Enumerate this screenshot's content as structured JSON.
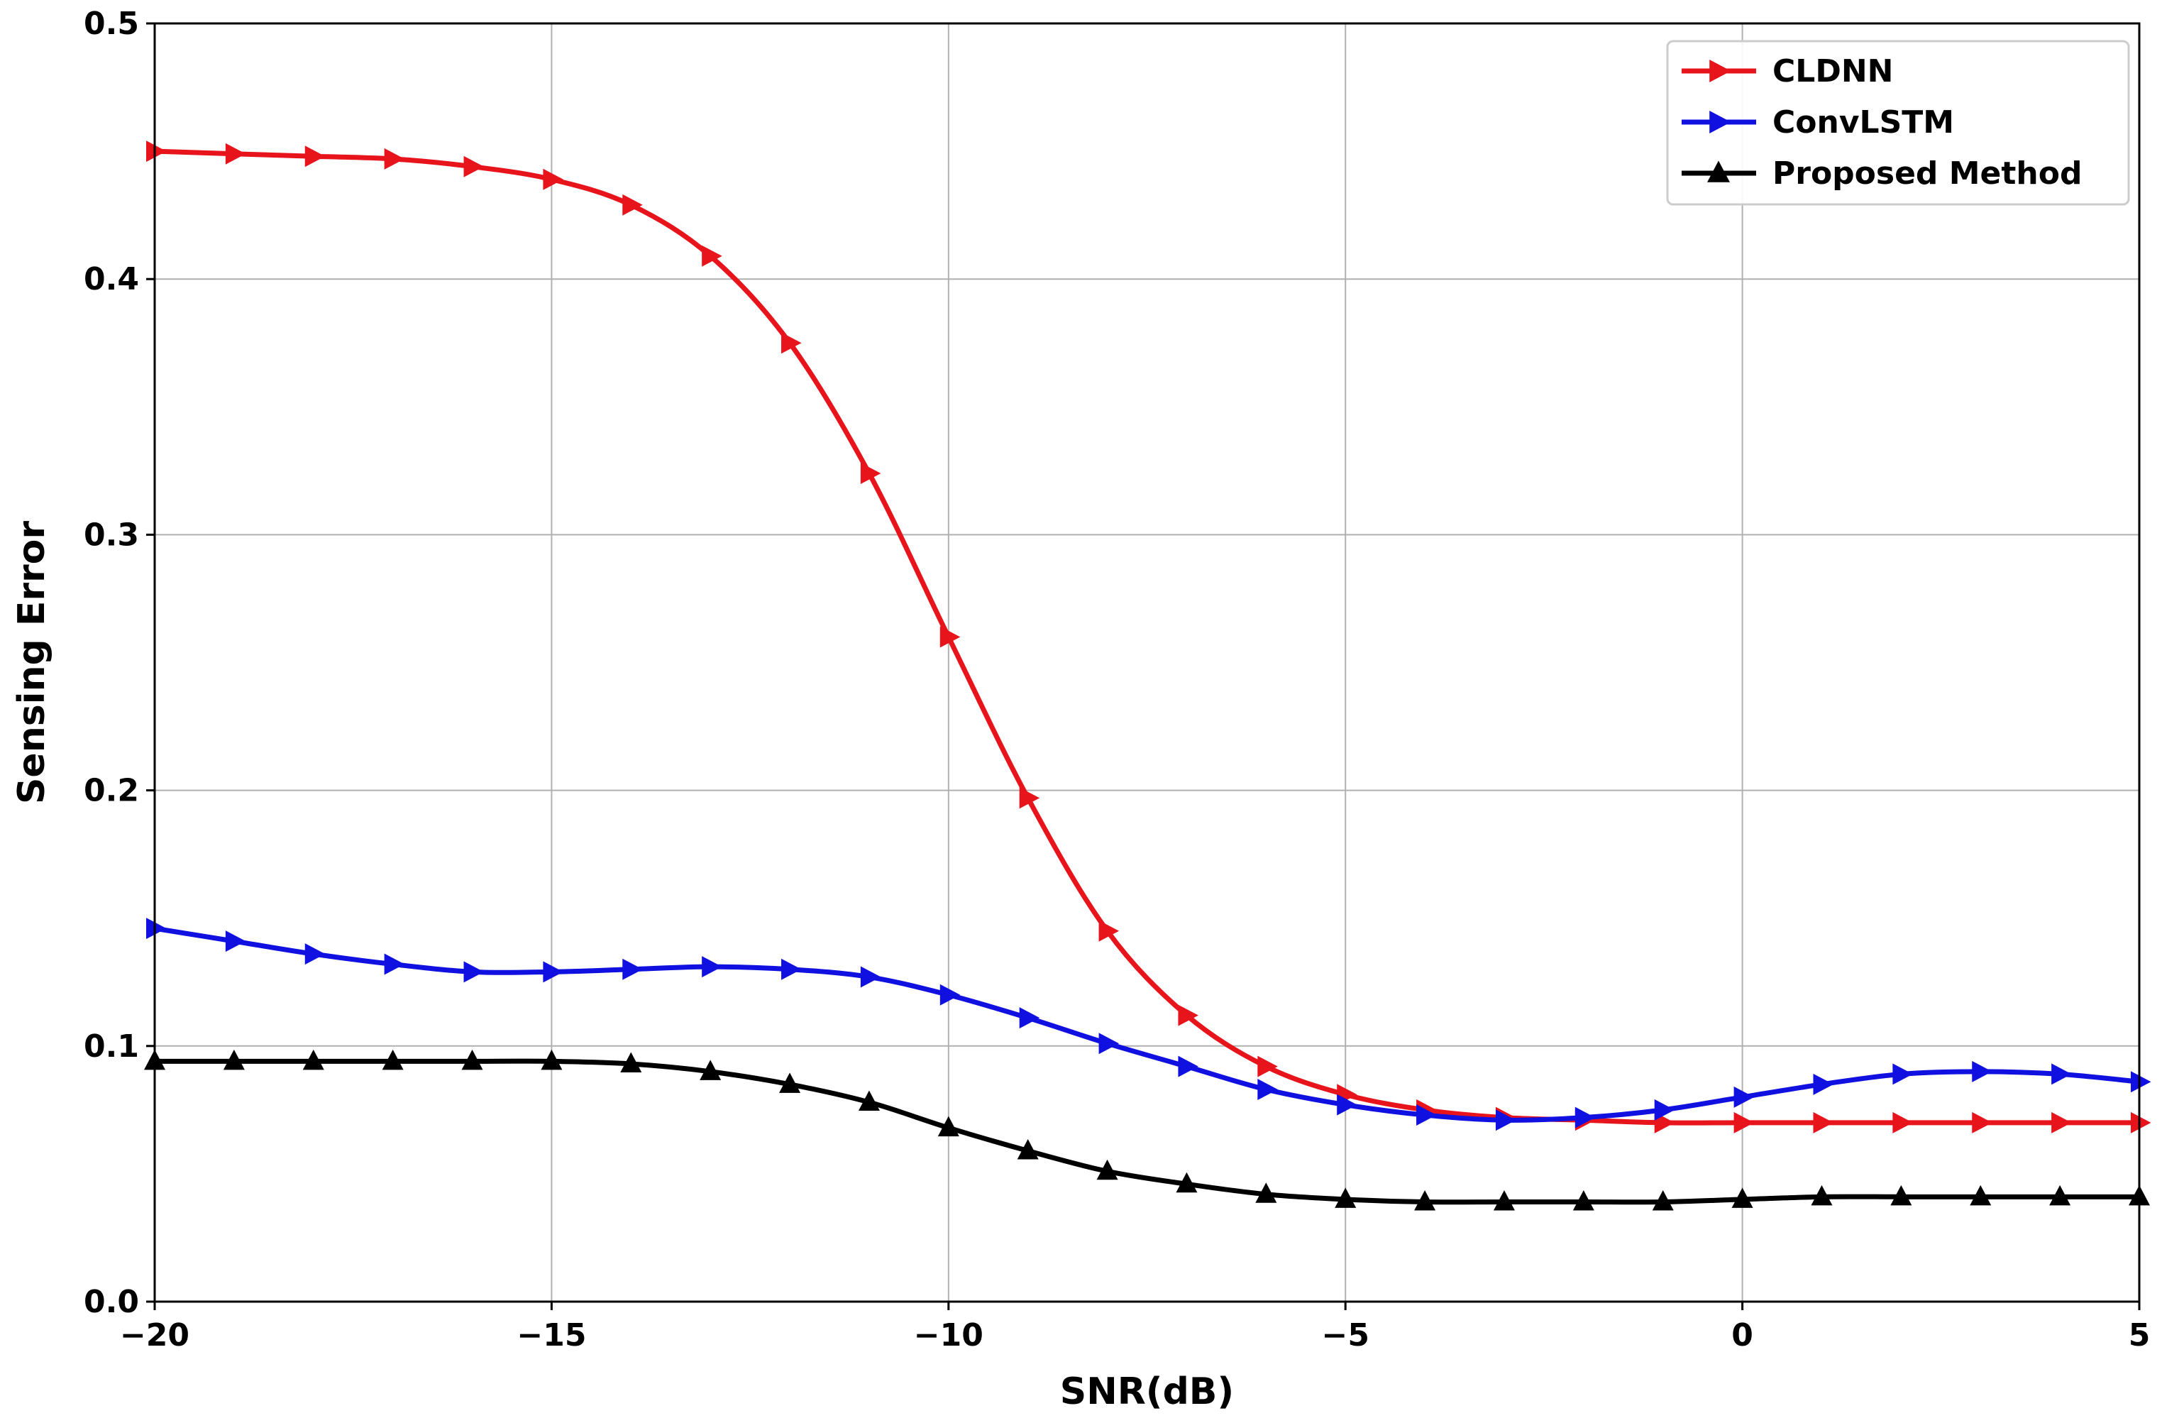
{
  "chart_data": {
    "type": "line",
    "title": "",
    "xlabel": "SNR(dB)",
    "ylabel": "Sensing Error",
    "xlim": [
      -20,
      5
    ],
    "ylim": [
      0.0,
      0.5
    ],
    "xticks": [
      -20,
      -15,
      -10,
      -5,
      0,
      5
    ],
    "xtick_labels": [
      "−20",
      "−15",
      "−10",
      "−5",
      "0",
      "5"
    ],
    "yticks": [
      0.0,
      0.1,
      0.2,
      0.3,
      0.4,
      0.5
    ],
    "ytick_labels": [
      "0.0",
      "0.1",
      "0.2",
      "0.3",
      "0.4",
      "0.5"
    ],
    "grid": true,
    "legend_position": "top-right",
    "x": [
      -20,
      -19,
      -18,
      -17,
      -16,
      -15,
      -14,
      -13,
      -12,
      -11,
      -10,
      -9,
      -8,
      -7,
      -6,
      -5,
      -4,
      -3,
      -2,
      -1,
      0,
      1,
      2,
      3,
      4,
      5
    ],
    "series": [
      {
        "name": "CLDNN",
        "color": "#e8141c",
        "marker": "triangle-right",
        "values": [
          0.45,
          0.449,
          0.448,
          0.447,
          0.444,
          0.439,
          0.429,
          0.409,
          0.375,
          0.324,
          0.26,
          0.197,
          0.145,
          0.112,
          0.092,
          0.081,
          0.075,
          0.072,
          0.071,
          0.07,
          0.07,
          0.07,
          0.07,
          0.07,
          0.07,
          0.07
        ]
      },
      {
        "name": "ConvLSTM",
        "color": "#1010e0",
        "marker": "triangle-right",
        "values": [
          0.146,
          0.141,
          0.136,
          0.132,
          0.129,
          0.129,
          0.13,
          0.131,
          0.13,
          0.127,
          0.12,
          0.111,
          0.101,
          0.092,
          0.083,
          0.077,
          0.073,
          0.071,
          0.072,
          0.075,
          0.08,
          0.085,
          0.089,
          0.09,
          0.089,
          0.086
        ]
      },
      {
        "name": "Proposed Method",
        "color": "#000000",
        "marker": "triangle-up",
        "values": [
          0.094,
          0.094,
          0.094,
          0.094,
          0.094,
          0.094,
          0.093,
          0.09,
          0.085,
          0.078,
          0.068,
          0.059,
          0.051,
          0.046,
          0.042,
          0.04,
          0.039,
          0.039,
          0.039,
          0.039,
          0.04,
          0.041,
          0.041,
          0.041,
          0.041,
          0.041
        ]
      }
    ]
  }
}
